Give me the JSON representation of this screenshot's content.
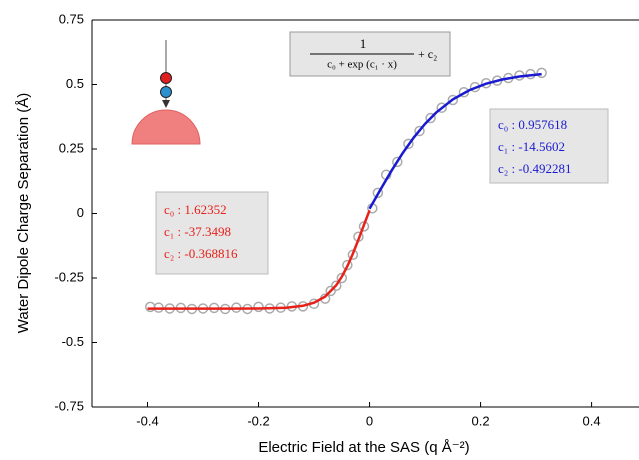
{
  "chart_data": {
    "type": "scatter",
    "xlabel": "Electric Field at the SAS (q Å⁻²)",
    "ylabel": "Water Dipole Charge Separation (Å)",
    "xlim": [
      -0.5,
      0.48
    ],
    "ylim": [
      -0.75,
      0.75
    ],
    "xticks": [
      -0.4,
      -0.2,
      0,
      0.2,
      0.4
    ],
    "yticks": [
      0.75,
      0.5,
      0.25,
      0,
      -0.25,
      -0.5,
      -0.75
    ],
    "series": [
      {
        "mode": "markers",
        "color": "#aaaaaa",
        "x": [
          -0.395,
          -0.38,
          -0.36,
          -0.34,
          -0.32,
          -0.3,
          -0.28,
          -0.26,
          -0.24,
          -0.22,
          -0.2,
          -0.18,
          -0.16,
          -0.14,
          -0.12,
          -0.1,
          -0.08,
          -0.07,
          -0.06,
          -0.05,
          -0.04,
          -0.03,
          -0.02,
          -0.01,
          0.005,
          0.015,
          0.03,
          0.05,
          0.07,
          0.09,
          0.11,
          0.13,
          0.15,
          0.17,
          0.19,
          0.21,
          0.23,
          0.25,
          0.27,
          0.29,
          0.31
        ],
        "values": [
          -0.362,
          -0.365,
          -0.368,
          -0.366,
          -0.37,
          -0.368,
          -0.366,
          -0.37,
          -0.365,
          -0.37,
          -0.362,
          -0.368,
          -0.365,
          -0.36,
          -0.36,
          -0.35,
          -0.33,
          -0.3,
          -0.28,
          -0.25,
          -0.2,
          -0.16,
          -0.09,
          -0.05,
          0.02,
          0.08,
          0.15,
          0.2,
          0.27,
          0.32,
          0.37,
          0.41,
          0.44,
          0.47,
          0.49,
          0.505,
          0.515,
          0.525,
          0.535,
          0.54,
          0.545
        ]
      },
      {
        "mode": "line",
        "color": "#e8201a",
        "x": [
          -0.4,
          -0.35,
          -0.3,
          -0.25,
          -0.2,
          -0.15,
          -0.12,
          -0.1,
          -0.08,
          -0.06,
          -0.05,
          -0.04,
          -0.03,
          -0.02,
          -0.01,
          0
        ],
        "values": [
          -0.3688,
          -0.3688,
          -0.3688,
          -0.3688,
          -0.3682,
          -0.3651,
          -0.3577,
          -0.3458,
          -0.3222,
          -0.2781,
          -0.2452,
          -0.2043,
          -0.1556,
          -0.101,
          -0.0437,
          0.0124
        ]
      },
      {
        "mode": "line",
        "color": "#1a1ad0",
        "x": [
          0,
          0.02,
          0.04,
          0.06,
          0.08,
          0.1,
          0.12,
          0.15,
          0.18,
          0.21,
          0.24,
          0.27,
          0.31
        ],
        "values": [
          0.0185,
          0.0942,
          0.1673,
          0.235,
          0.2953,
          0.3475,
          0.3912,
          0.4421,
          0.4783,
          0.5031,
          0.5198,
          0.531,
          0.5401
        ]
      }
    ],
    "annotations": {
      "formula": {
        "numerator": "1",
        "denominator": "c₀ + exp (c₁ · x)",
        "suffix": "+ c₂"
      },
      "red_fit": {
        "color": "#e8201a",
        "lines": [
          "c₀ : 1.62352",
          "c₁ : -37.3498",
          "c₂ : -0.368816"
        ]
      },
      "blue_fit": {
        "color": "#1a1ad0",
        "lines": [
          "c₀ : 0.957618",
          "c₁ : -14.5602",
          "c₂ : -0.492281"
        ]
      }
    }
  }
}
